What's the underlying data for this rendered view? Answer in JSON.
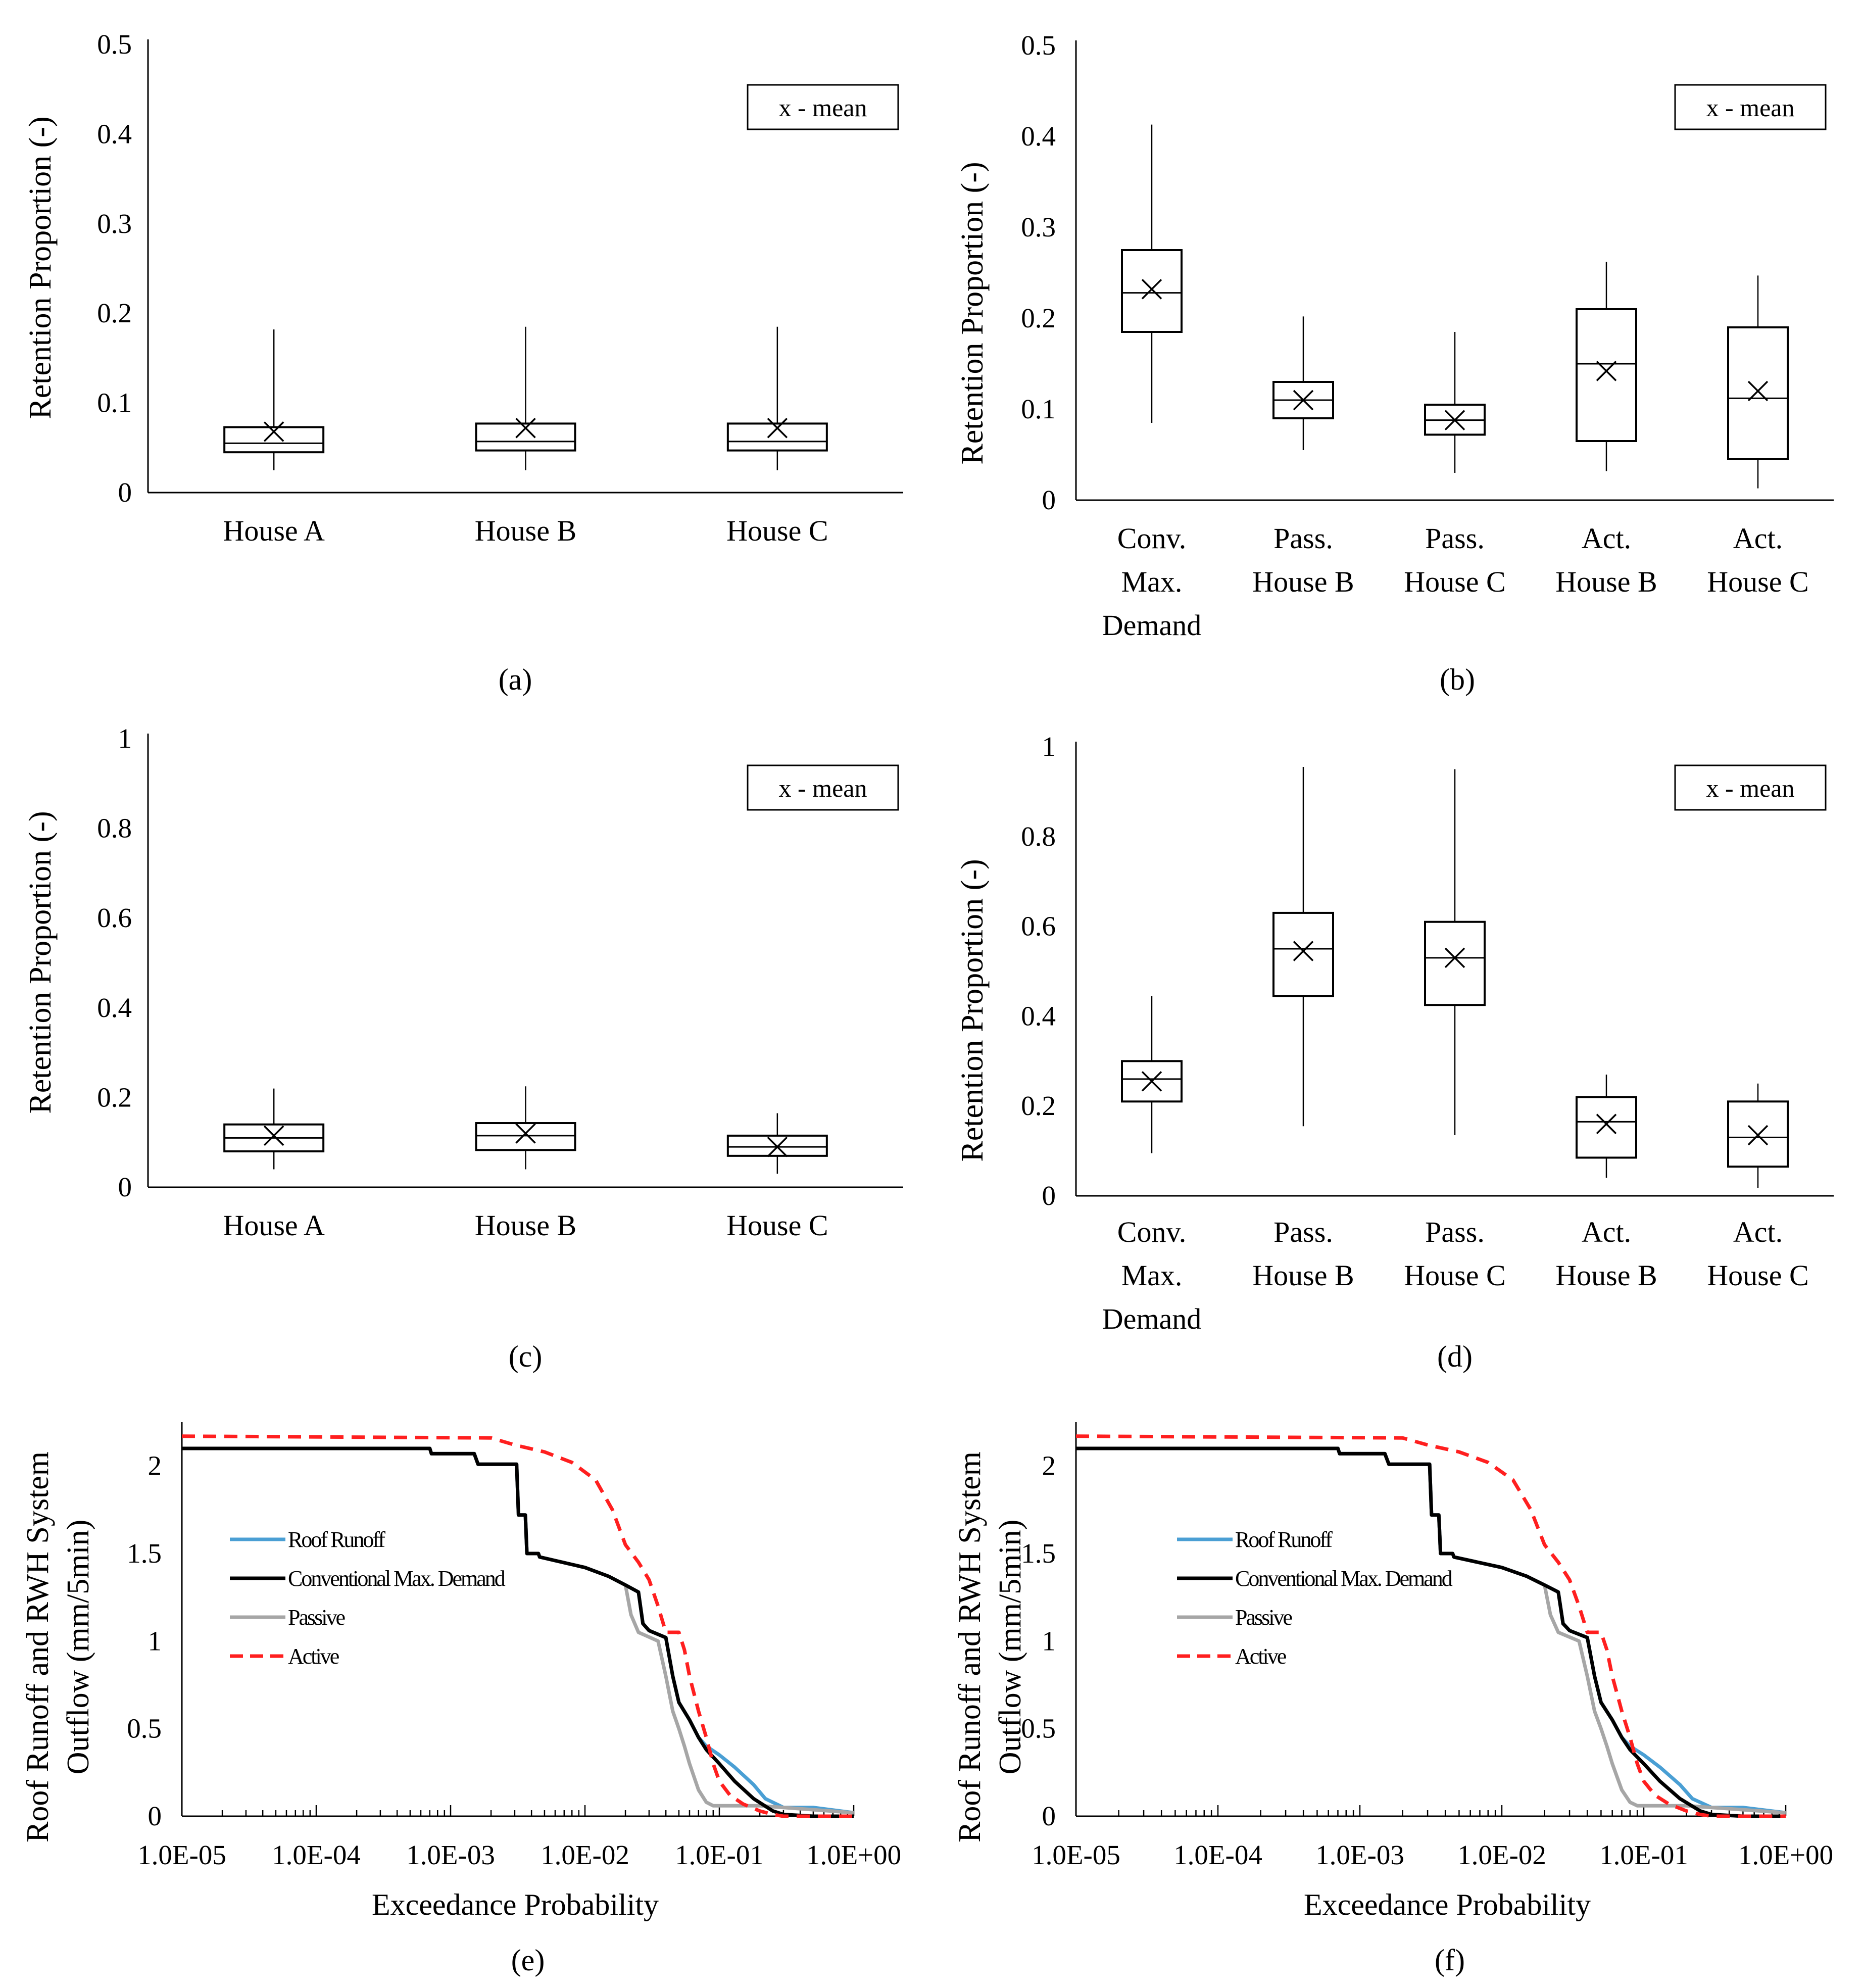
{
  "chart_data": [
    {
      "panel": "(a)",
      "type": "box",
      "ylabel": "Retention Proportion (-)",
      "yticks": [
        "0",
        "0.1",
        "0.2",
        "0.3",
        "0.4",
        "0.5"
      ],
      "ylim": [
        0,
        0.5
      ],
      "legend": "x - mean",
      "categories": [
        [
          "House A"
        ],
        [
          "House B"
        ],
        [
          "House C"
        ]
      ],
      "boxes": [
        {
          "min": 0.025,
          "q1": 0.045,
          "median": 0.055,
          "q3": 0.073,
          "max": 0.182,
          "mean": 0.068
        },
        {
          "min": 0.025,
          "q1": 0.047,
          "median": 0.057,
          "q3": 0.077,
          "max": 0.185,
          "mean": 0.072
        },
        {
          "min": 0.025,
          "q1": 0.047,
          "median": 0.057,
          "q3": 0.077,
          "max": 0.185,
          "mean": 0.072
        }
      ]
    },
    {
      "panel": "(b)",
      "type": "box",
      "ylabel": "Retention Proportion (-)",
      "yticks": [
        "0",
        "0.1",
        "0.2",
        "0.3",
        "0.4",
        "0.5"
      ],
      "ylim": [
        0,
        0.5
      ],
      "legend": "x - mean",
      "categories": [
        [
          "Conv.",
          "Max.",
          "Demand"
        ],
        [
          "Pass.",
          "House B"
        ],
        [
          "Pass.",
          "House C"
        ],
        [
          "Act.",
          "House B"
        ],
        [
          "Act.",
          "House C"
        ]
      ],
      "boxes": [
        {
          "min": 0.085,
          "q1": 0.185,
          "median": 0.228,
          "q3": 0.275,
          "max": 0.413,
          "mean": 0.232
        },
        {
          "min": 0.055,
          "q1": 0.09,
          "median": 0.11,
          "q3": 0.13,
          "max": 0.202,
          "mean": 0.11
        },
        {
          "min": 0.03,
          "q1": 0.072,
          "median": 0.088,
          "q3": 0.105,
          "max": 0.185,
          "mean": 0.088
        },
        {
          "min": 0.032,
          "q1": 0.065,
          "median": 0.15,
          "q3": 0.21,
          "max": 0.262,
          "mean": 0.142
        },
        {
          "min": 0.013,
          "q1": 0.045,
          "median": 0.112,
          "q3": 0.19,
          "max": 0.247,
          "mean": 0.12
        }
      ]
    },
    {
      "panel": "(c)",
      "type": "box",
      "ylabel": "Retention Proportion (-)",
      "yticks": [
        "0",
        "0.2",
        "0.4",
        "0.6",
        "0.8",
        "1"
      ],
      "ylim": [
        0,
        1
      ],
      "legend": "x - mean",
      "categories": [
        [
          "House A"
        ],
        [
          "House B"
        ],
        [
          "House C"
        ]
      ],
      "boxes": [
        {
          "min": 0.04,
          "q1": 0.08,
          "median": 0.11,
          "q3": 0.14,
          "max": 0.22,
          "mean": 0.115
        },
        {
          "min": 0.04,
          "q1": 0.083,
          "median": 0.115,
          "q3": 0.143,
          "max": 0.225,
          "mean": 0.12
        },
        {
          "min": 0.03,
          "q1": 0.07,
          "median": 0.09,
          "q3": 0.115,
          "max": 0.165,
          "mean": 0.09
        }
      ]
    },
    {
      "panel": "(d)",
      "type": "box",
      "ylabel": "Retention Proportion (-)",
      "yticks": [
        "0",
        "0.2",
        "0.4",
        "0.6",
        "0.8",
        "1"
      ],
      "ylim": [
        0,
        1
      ],
      "legend": "x - mean",
      "categories": [
        [
          "Conv.",
          "Max.",
          "Demand"
        ],
        [
          "Pass.",
          "House B"
        ],
        [
          "Pass.",
          "House C"
        ],
        [
          "Act.",
          "House B"
        ],
        [
          "Act.",
          "House C"
        ]
      ],
      "boxes": [
        {
          "min": 0.095,
          "q1": 0.21,
          "median": 0.26,
          "q3": 0.3,
          "max": 0.445,
          "mean": 0.255
        },
        {
          "min": 0.155,
          "q1": 0.445,
          "median": 0.55,
          "q3": 0.63,
          "max": 0.955,
          "mean": 0.545
        },
        {
          "min": 0.135,
          "q1": 0.425,
          "median": 0.53,
          "q3": 0.61,
          "max": 0.95,
          "mean": 0.53
        },
        {
          "min": 0.04,
          "q1": 0.085,
          "median": 0.165,
          "q3": 0.22,
          "max": 0.27,
          "mean": 0.16
        },
        {
          "min": 0.018,
          "q1": 0.065,
          "median": 0.13,
          "q3": 0.21,
          "max": 0.25,
          "mean": 0.135
        }
      ]
    },
    {
      "panel": "(e)",
      "type": "line",
      "xscale": "log",
      "xlabel": "Exceedance Probability",
      "ylabel": [
        "Roof Runoff and RWH System",
        "Outflow (mm/5min)"
      ],
      "xticks": [
        "1.0E-05",
        "1.0E-04",
        "1.0E-03",
        "1.0E-02",
        "1.0E-01",
        "1.0E+00"
      ],
      "yticks": [
        "0",
        "0.5",
        "1",
        "1.5",
        "2"
      ],
      "xlim": [
        1e-05,
        1
      ],
      "ylim": [
        0,
        2.25
      ],
      "series": [
        {
          "name": "Roof Runoff",
          "color": "#4a9fd4",
          "dash": false,
          "x": [
            1e-05,
            0.0007,
            0.00072,
            0.0015,
            0.0016,
            0.0031,
            0.0032,
            0.0036,
            0.0037,
            0.0045,
            0.0046,
            0.01,
            0.015,
            0.02,
            0.025,
            0.027,
            0.03,
            0.04,
            0.045,
            0.05,
            0.06,
            0.07,
            0.08,
            0.1,
            0.13,
            0.18,
            0.22,
            0.3,
            0.5,
            1
          ],
          "y": [
            2.1,
            2.1,
            2.07,
            2.07,
            2.01,
            2.01,
            1.72,
            1.72,
            1.5,
            1.5,
            1.48,
            1.42,
            1.37,
            1.32,
            1.28,
            1.1,
            1.06,
            1.02,
            0.8,
            0.65,
            0.55,
            0.45,
            0.4,
            0.35,
            0.28,
            0.18,
            0.1,
            0.05,
            0.05,
            0.02
          ]
        },
        {
          "name": "Conventional Max. Demand",
          "color": "#000000",
          "dash": false,
          "x": [
            1e-05,
            0.0007,
            0.00072,
            0.0015,
            0.0016,
            0.0031,
            0.0032,
            0.0036,
            0.0037,
            0.0045,
            0.0046,
            0.01,
            0.015,
            0.02,
            0.025,
            0.027,
            0.03,
            0.04,
            0.045,
            0.05,
            0.06,
            0.07,
            0.08,
            0.1,
            0.13,
            0.18,
            0.25,
            0.3,
            0.5,
            1
          ],
          "y": [
            2.1,
            2.1,
            2.07,
            2.07,
            2.01,
            2.01,
            1.72,
            1.72,
            1.5,
            1.5,
            1.48,
            1.42,
            1.37,
            1.32,
            1.28,
            1.1,
            1.06,
            1.02,
            0.8,
            0.65,
            0.55,
            0.45,
            0.38,
            0.3,
            0.2,
            0.1,
            0.03,
            0.01,
            0.0,
            0.0
          ]
        },
        {
          "name": "Passive",
          "color": "#a6a6a6",
          "dash": false,
          "x": [
            1e-05,
            0.0007,
            0.00072,
            0.0015,
            0.0016,
            0.0031,
            0.0032,
            0.0036,
            0.0037,
            0.0045,
            0.0046,
            0.01,
            0.015,
            0.02,
            0.022,
            0.025,
            0.035,
            0.04,
            0.045,
            0.05,
            0.055,
            0.06,
            0.07,
            0.08,
            0.09,
            0.2,
            0.3,
            1
          ],
          "y": [
            2.1,
            2.1,
            2.07,
            2.07,
            2.01,
            2.01,
            1.72,
            1.72,
            1.5,
            1.5,
            1.48,
            1.42,
            1.37,
            1.32,
            1.15,
            1.05,
            1.0,
            0.8,
            0.6,
            0.5,
            0.4,
            0.3,
            0.15,
            0.08,
            0.06,
            0.06,
            0.05,
            0.02
          ]
        },
        {
          "name": "Active",
          "color": "#ff1f1f",
          "dash": true,
          "x": [
            1e-05,
            0.002,
            0.003,
            0.005,
            0.008,
            0.012,
            0.016,
            0.02,
            0.025,
            0.03,
            0.035,
            0.04,
            0.05,
            0.055,
            0.06,
            0.07,
            0.08,
            0.09,
            0.1,
            0.12,
            0.15,
            0.2,
            0.25,
            0.3,
            0.5,
            1
          ],
          "y": [
            2.17,
            2.16,
            2.12,
            2.08,
            2.02,
            1.92,
            1.75,
            1.55,
            1.45,
            1.35,
            1.2,
            1.05,
            1.05,
            0.95,
            0.8,
            0.6,
            0.45,
            0.3,
            0.2,
            0.12,
            0.07,
            0.03,
            0.01,
            0.0,
            0.0,
            0.0
          ]
        }
      ]
    },
    {
      "panel": "(f)",
      "type": "line",
      "xscale": "log",
      "xlabel": "Exceedance Probability",
      "ylabel": [
        "Roof Runoff and RWH System",
        "Outflow (mm/5min)"
      ],
      "xticks": [
        "1.0E-05",
        "1.0E-04",
        "1.0E-03",
        "1.0E-02",
        "1.0E-01",
        "1.0E+00"
      ],
      "yticks": [
        "0",
        "0.5",
        "1",
        "1.5",
        "2"
      ],
      "xlim": [
        1e-05,
        1
      ],
      "ylim": [
        0,
        2.25
      ],
      "series": [
        {
          "name": "Roof Runoff",
          "color": "#4a9fd4",
          "dash": false,
          "x": [
            1e-05,
            0.0007,
            0.00072,
            0.0015,
            0.0016,
            0.0031,
            0.0032,
            0.0036,
            0.0037,
            0.0045,
            0.0046,
            0.01,
            0.015,
            0.02,
            0.025,
            0.027,
            0.03,
            0.04,
            0.045,
            0.05,
            0.06,
            0.07,
            0.08,
            0.1,
            0.13,
            0.18,
            0.22,
            0.3,
            0.5,
            1
          ],
          "y": [
            2.1,
            2.1,
            2.07,
            2.07,
            2.01,
            2.01,
            1.72,
            1.72,
            1.5,
            1.5,
            1.48,
            1.42,
            1.37,
            1.32,
            1.28,
            1.1,
            1.06,
            1.02,
            0.8,
            0.65,
            0.55,
            0.45,
            0.4,
            0.35,
            0.28,
            0.18,
            0.1,
            0.05,
            0.05,
            0.02
          ]
        },
        {
          "name": "Conventional Max. Demand",
          "color": "#000000",
          "dash": false,
          "x": [
            1e-05,
            0.0007,
            0.00072,
            0.0015,
            0.0016,
            0.0031,
            0.0032,
            0.0036,
            0.0037,
            0.0045,
            0.0046,
            0.01,
            0.015,
            0.02,
            0.025,
            0.027,
            0.03,
            0.04,
            0.045,
            0.05,
            0.06,
            0.07,
            0.08,
            0.1,
            0.13,
            0.18,
            0.25,
            0.3,
            0.5,
            1
          ],
          "y": [
            2.1,
            2.1,
            2.07,
            2.07,
            2.01,
            2.01,
            1.72,
            1.72,
            1.5,
            1.5,
            1.48,
            1.42,
            1.37,
            1.32,
            1.28,
            1.1,
            1.06,
            1.02,
            0.8,
            0.65,
            0.55,
            0.45,
            0.38,
            0.3,
            0.2,
            0.1,
            0.03,
            0.01,
            0.0,
            0.0
          ]
        },
        {
          "name": "Passive",
          "color": "#a6a6a6",
          "dash": false,
          "x": [
            1e-05,
            0.0007,
            0.00072,
            0.0015,
            0.0016,
            0.0031,
            0.0032,
            0.0036,
            0.0037,
            0.0045,
            0.0046,
            0.01,
            0.015,
            0.02,
            0.022,
            0.025,
            0.035,
            0.04,
            0.045,
            0.05,
            0.055,
            0.06,
            0.07,
            0.08,
            0.09,
            0.2,
            0.3,
            1
          ],
          "y": [
            2.1,
            2.1,
            2.07,
            2.07,
            2.01,
            2.01,
            1.72,
            1.72,
            1.5,
            1.5,
            1.48,
            1.42,
            1.37,
            1.32,
            1.15,
            1.05,
            1.0,
            0.8,
            0.6,
            0.5,
            0.4,
            0.3,
            0.15,
            0.08,
            0.06,
            0.06,
            0.05,
            0.02
          ]
        },
        {
          "name": "Active",
          "color": "#ff1f1f",
          "dash": true,
          "x": [
            1e-05,
            0.002,
            0.003,
            0.005,
            0.008,
            0.012,
            0.016,
            0.02,
            0.025,
            0.03,
            0.035,
            0.04,
            0.05,
            0.055,
            0.06,
            0.07,
            0.08,
            0.09,
            0.1,
            0.12,
            0.15,
            0.2,
            0.25,
            0.3,
            0.5,
            1
          ],
          "y": [
            2.17,
            2.16,
            2.12,
            2.08,
            2.02,
            1.92,
            1.75,
            1.55,
            1.45,
            1.35,
            1.2,
            1.05,
            1.05,
            0.95,
            0.8,
            0.6,
            0.45,
            0.3,
            0.2,
            0.12,
            0.07,
            0.03,
            0.01,
            0.0,
            0.0,
            0.0
          ]
        }
      ]
    }
  ]
}
